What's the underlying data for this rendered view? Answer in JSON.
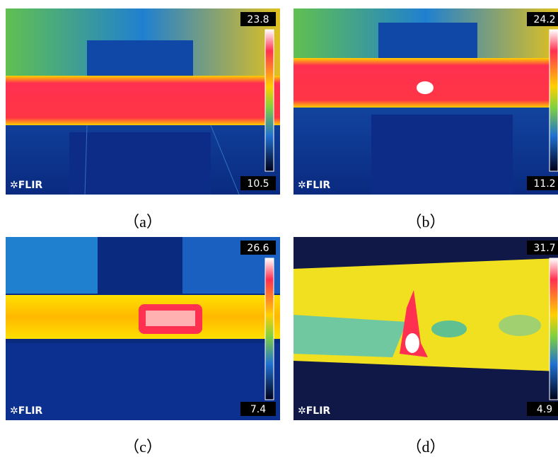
{
  "panels": [
    {
      "max": "23.8",
      "min": "10.5",
      "logo": "FLIR",
      "caption": "（a）"
    },
    {
      "max": "24.2",
      "min": "11.2",
      "logo": "FLIR",
      "caption": "（b）"
    },
    {
      "max": "26.6",
      "min": "7.4",
      "logo": "FLIR",
      "caption": "（c）"
    },
    {
      "max": "31.7",
      "min": "4.9",
      "logo": "FLIR",
      "caption": "（d）"
    }
  ]
}
